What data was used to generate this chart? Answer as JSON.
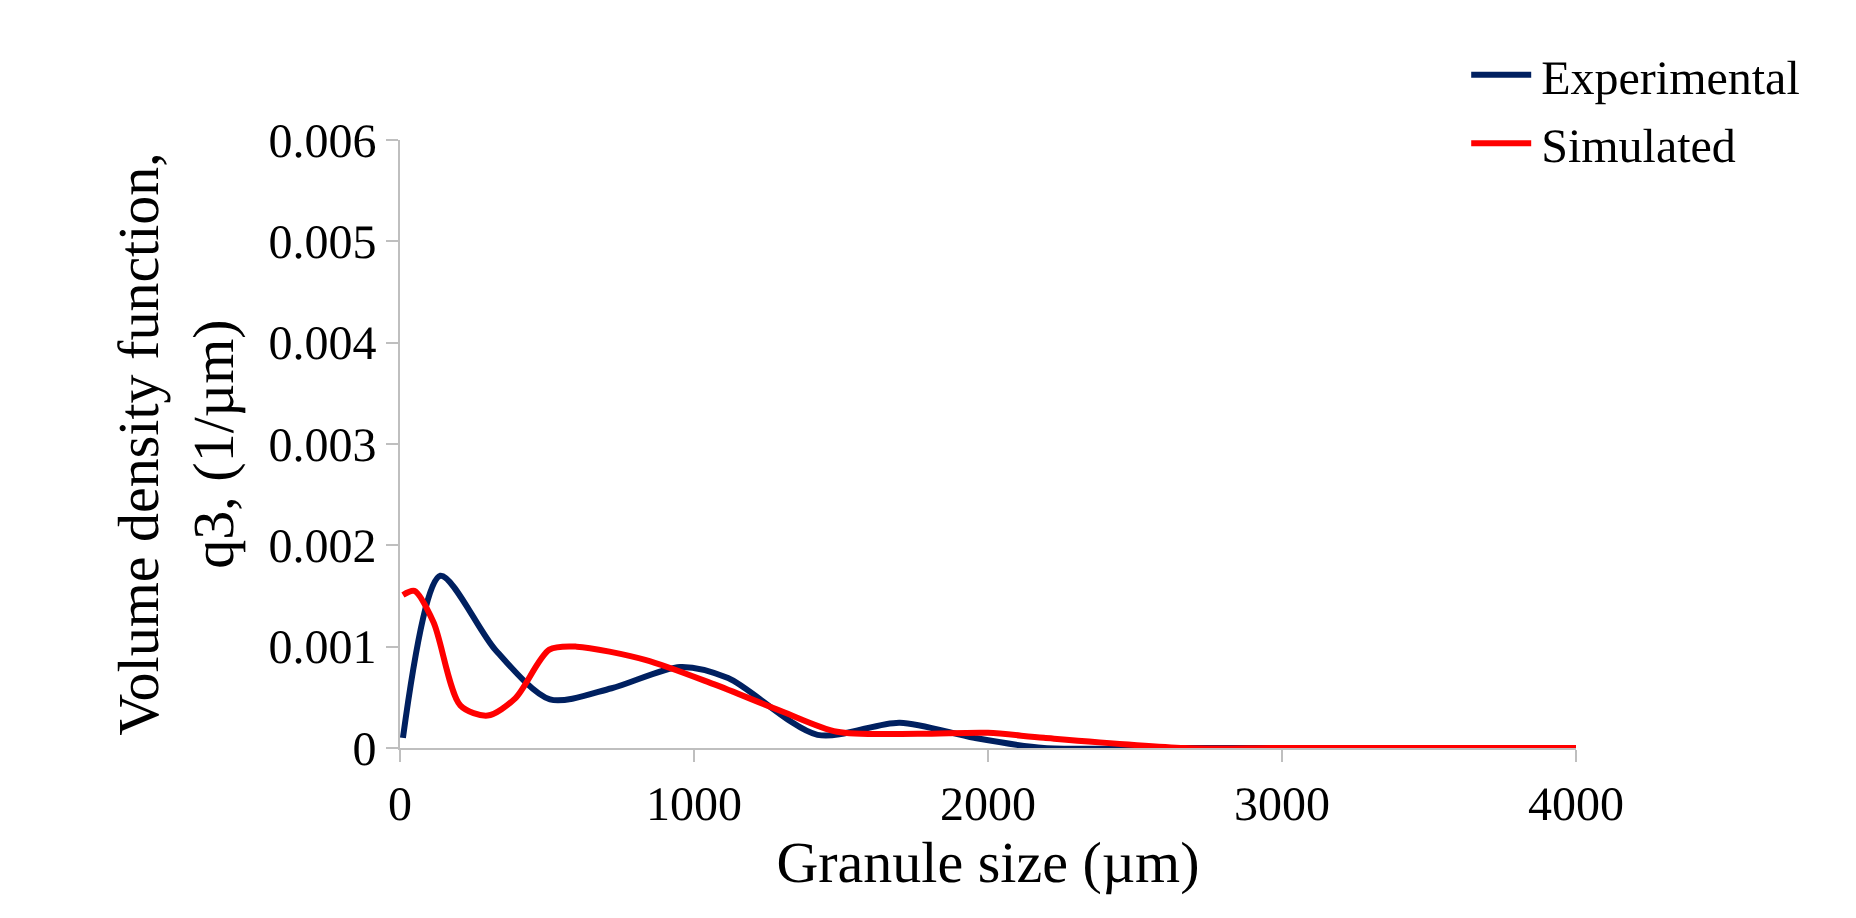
{
  "chart_data": {
    "type": "line",
    "xlabel": "Granule size (µm)",
    "ylabel": "Volume density function,\nq3, (1/µm)",
    "xlim": [
      0,
      4000
    ],
    "xticks": [
      0,
      1000,
      2000,
      3000,
      4000
    ],
    "ylim": [
      0,
      0.006
    ],
    "yticks": [
      0,
      0.001,
      0.002,
      0.003,
      0.004,
      0.005,
      0.006
    ],
    "legend": "top right",
    "marker": "none",
    "line_style": "solid",
    "series": [
      {
        "name": "Experimental",
        "color": "#002060",
        "x": [
          10,
          137,
          324,
          510,
          720,
          953,
          1116,
          1420,
          1700,
          1953,
          2190,
          2600,
          3000,
          4000
        ],
        "values": [
          0.0001,
          0.0017,
          0.00097,
          0.00048,
          0.00059,
          0.0008,
          0.00069,
          0.00013,
          0.00025,
          0.0001,
          0.0,
          0.0,
          0.0,
          0.0
        ]
      },
      {
        "name": "Simulated",
        "color": "#ff0000",
        "x": [
          10,
          49,
          114,
          205,
          298,
          392,
          508,
          601,
          834,
          1067,
          1300,
          1487,
          1766,
          2000,
          2190,
          2670,
          3000,
          4000
        ],
        "values": [
          0.00151,
          0.00155,
          0.00124,
          0.00042,
          0.00032,
          0.00049,
          0.00097,
          0.001,
          0.00087,
          0.00063,
          0.00036,
          0.00016,
          0.00014,
          0.00015,
          0.0001,
          0.0,
          0.0,
          0.0
        ]
      }
    ]
  }
}
